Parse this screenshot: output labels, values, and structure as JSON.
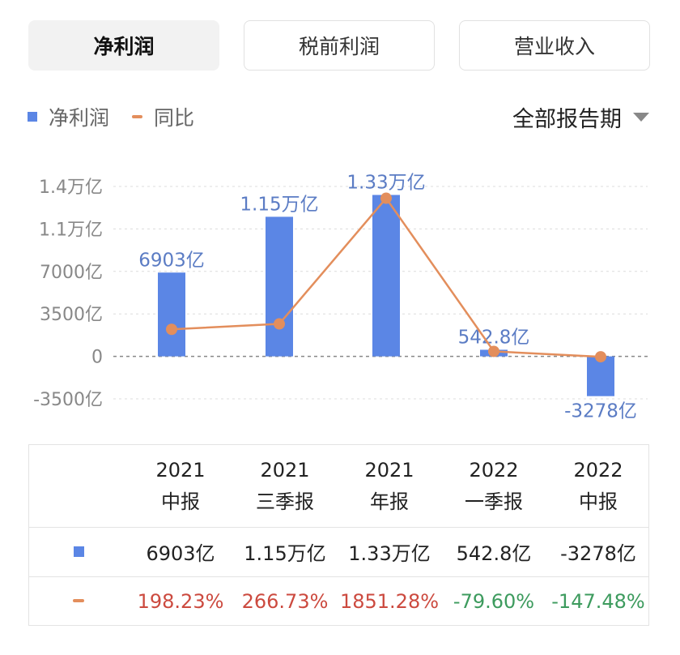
{
  "tabs": [
    {
      "label": "净利润",
      "active": true
    },
    {
      "label": "税前利润",
      "active": false
    },
    {
      "label": "营业收入",
      "active": false
    }
  ],
  "legend": {
    "bar_label": "净利润",
    "line_label": "同比"
  },
  "period_selector": {
    "label": "全部报告期"
  },
  "colors": {
    "bar": "#5b86e5",
    "line": "#e38e5c",
    "positive": "#cc4a3f",
    "negative": "#3d9b5e",
    "data_label": "#5b7cc4"
  },
  "chart_data": {
    "type": "bar",
    "categories": [
      "2021 中报",
      "2021 三季报",
      "2021 年报",
      "2022 一季报",
      "2022 中报"
    ],
    "series": [
      {
        "name": "净利润",
        "type": "bar",
        "values": [
          6903,
          11500,
          13300,
          542.8,
          -3278
        ],
        "labels": [
          "6903亿",
          "1.15万亿",
          "1.33万亿",
          "542.8亿",
          "-3278亿"
        ]
      },
      {
        "name": "同比",
        "type": "line",
        "values": [
          198.23,
          266.73,
          1851.28,
          -79.6,
          -147.48
        ]
      }
    ],
    "ylim": [
      -3500,
      14000
    ],
    "yticks": [
      {
        "value": 14000,
        "label": "1.4万亿"
      },
      {
        "value": 10500,
        "label": "1.1万亿"
      },
      {
        "value": 7000,
        "label": "7000亿"
      },
      {
        "value": 3500,
        "label": "3500亿"
      },
      {
        "value": 0,
        "label": "0"
      },
      {
        "value": -3500,
        "label": "-3500亿"
      }
    ],
    "grid": true
  },
  "table": {
    "columns": [
      {
        "year": "2021",
        "period": "中报"
      },
      {
        "year": "2021",
        "period": "三季报"
      },
      {
        "year": "2021",
        "period": "年报"
      },
      {
        "year": "2022",
        "period": "一季报"
      },
      {
        "year": "2022",
        "period": "中报"
      }
    ],
    "net_profit": [
      "6903亿",
      "1.15万亿",
      "1.33万亿",
      "542.8亿",
      "-3278亿"
    ],
    "yoy": [
      "198.23%",
      "266.73%",
      "1851.28%",
      "-79.60%",
      "-147.48%"
    ]
  }
}
